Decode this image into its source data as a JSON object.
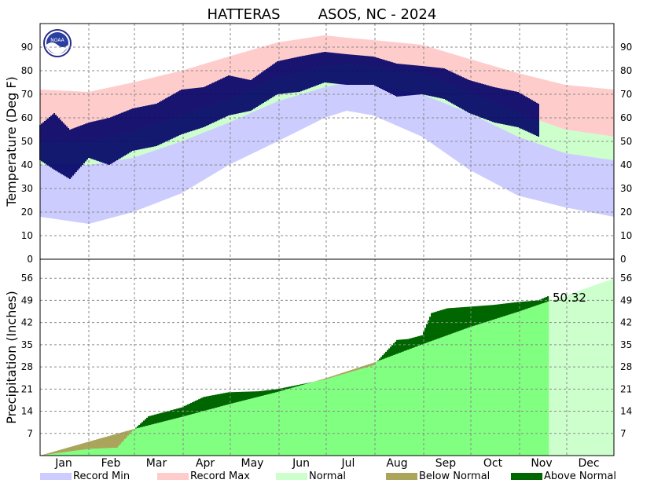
{
  "title_left": "HATTERAS",
  "title_right": "ASOS, NC - 2024",
  "logo_text": "NOAA",
  "colors": {
    "record_min": "#ccccff",
    "record_max": "#ffcccc",
    "normal": "#ccffcc",
    "observed": "#000066",
    "below_normal": "#aaa55a",
    "above_normal": "#006600",
    "precip_fill": "#80ff80",
    "precip_future": "#ccffcc"
  },
  "legend": [
    {
      "label": "Record Min",
      "color": "#ccccff"
    },
    {
      "label": "Record Max",
      "color": "#ffcccc"
    },
    {
      "label": "Normal",
      "color": "#ccffcc"
    },
    {
      "label": "Below Normal",
      "color": "#aaa55a"
    },
    {
      "label": "Above Normal",
      "color": "#006600"
    }
  ],
  "chart_data": [
    {
      "type": "area",
      "ylabel": "Temperature (Deg F)",
      "ylim": [
        0,
        100
      ],
      "yticks": [
        0,
        10,
        20,
        30,
        40,
        50,
        60,
        70,
        80,
        90
      ],
      "months": [
        "Jan",
        "Feb",
        "Mar",
        "Apr",
        "May",
        "Jun",
        "Jul",
        "Aug",
        "Sep",
        "Oct",
        "Nov",
        "Dec"
      ],
      "grid": true,
      "series": [
        {
          "name": "Record Max",
          "x_day": [
            1,
            32,
            60,
            91,
            121,
            152,
            182,
            196,
            213,
            244,
            274,
            305,
            335,
            366
          ],
          "values": [
            72,
            71,
            75,
            80,
            86,
            92,
            95,
            94,
            93,
            91,
            85,
            79,
            74,
            72
          ]
        },
        {
          "name": "Normal",
          "x_day": [
            1,
            32,
            60,
            91,
            121,
            152,
            182,
            196,
            213,
            244,
            274,
            305,
            335,
            366
          ],
          "values": [
            50,
            50,
            54,
            61,
            68,
            77,
            82,
            83,
            82,
            79,
            71,
            62,
            55,
            52
          ]
        },
        {
          "name": "Normal",
          "x_day": [
            1,
            32,
            60,
            91,
            121,
            152,
            182,
            196,
            213,
            244,
            274,
            305,
            335,
            366
          ],
          "values": [
            40,
            40,
            43,
            50,
            58,
            67,
            73,
            75,
            74,
            70,
            62,
            52,
            45,
            42
          ]
        },
        {
          "name": "Record Min",
          "x_day": [
            1,
            32,
            60,
            91,
            121,
            152,
            182,
            196,
            213,
            244,
            274,
            305,
            335,
            366
          ],
          "values": [
            18,
            15,
            20,
            28,
            40,
            50,
            60,
            63,
            61,
            52,
            38,
            27,
            22,
            18
          ]
        },
        {
          "name": "Observed High",
          "x_day": [
            1,
            10,
            20,
            32,
            45,
            60,
            75,
            91,
            105,
            121,
            135,
            152,
            166,
            182,
            196,
            213,
            228,
            244,
            258,
            274,
            290,
            305,
            318
          ],
          "values": [
            57,
            62,
            55,
            58,
            60,
            64,
            66,
            72,
            73,
            78,
            76,
            84,
            86,
            88,
            87,
            86,
            83,
            82,
            81,
            76,
            73,
            71,
            66
          ]
        },
        {
          "name": "Observed Low",
          "x_day": [
            1,
            10,
            20,
            32,
            45,
            60,
            75,
            91,
            105,
            121,
            135,
            152,
            166,
            182,
            196,
            213,
            228,
            244,
            258,
            274,
            290,
            305,
            318
          ],
          "values": [
            42,
            38,
            34,
            43,
            40,
            46,
            48,
            53,
            56,
            61,
            63,
            70,
            71,
            75,
            74,
            74,
            69,
            70,
            68,
            62,
            58,
            56,
            52
          ]
        }
      ]
    },
    {
      "type": "area",
      "ylabel": "Precipitation (Inches)",
      "ylim": [
        0,
        62
      ],
      "yticks": [
        7,
        14,
        21,
        28,
        35,
        42,
        49,
        56
      ],
      "months": [
        "Jan",
        "Feb",
        "Mar",
        "Apr",
        "May",
        "Jun",
        "Jul",
        "Aug",
        "Sep",
        "Oct",
        "Nov",
        "Dec"
      ],
      "grid": true,
      "annotation": "50.32",
      "series": [
        {
          "name": "Normal",
          "x_day": [
            1,
            32,
            60,
            91,
            121,
            152,
            182,
            213,
            244,
            274,
            305,
            335,
            366
          ],
          "values": [
            0,
            4.4,
            8.3,
            12.2,
            16.2,
            20.1,
            24.3,
            29.3,
            35.1,
            40.5,
            45.4,
            50.5,
            55.9
          ]
        },
        {
          "name": "Observed",
          "x_day": [
            1,
            15,
            32,
            50,
            60,
            70,
            91,
            105,
            121,
            140,
            152,
            182,
            213,
            228,
            235,
            244,
            250,
            260,
            274,
            290,
            305,
            318,
            324
          ],
          "values": [
            0,
            1.0,
            2.1,
            2.5,
            7.9,
            12.4,
            15.2,
            18.5,
            20.0,
            20.3,
            21.0,
            24.0,
            28.5,
            36.5,
            36.8,
            38.0,
            45.0,
            46.5,
            47.0,
            47.6,
            48.5,
            49.0,
            50.32
          ]
        }
      ]
    }
  ]
}
